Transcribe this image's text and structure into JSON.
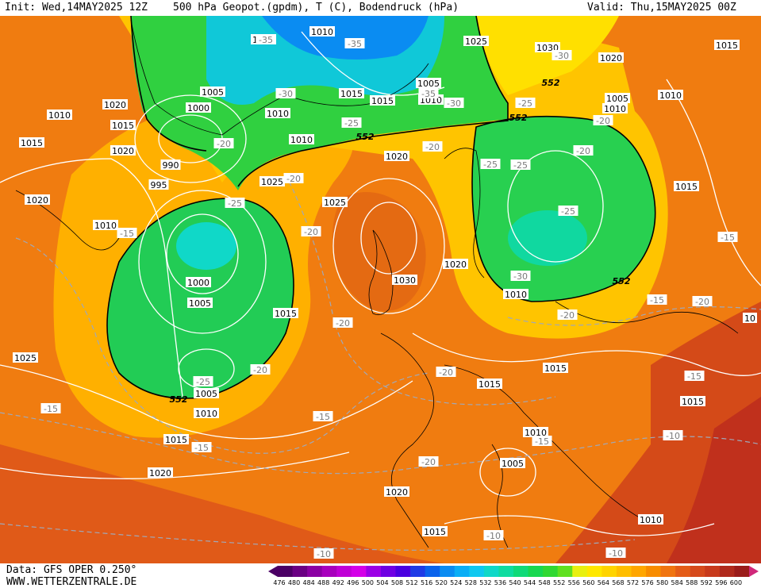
{
  "header": {
    "init": "Init: Wed,14MAY2025 12Z",
    "title": "500 hPa Geopot.(gpdm), T (C), Bodendruck (hPa)",
    "valid": "Valid: Thu,15MAY2025 00Z"
  },
  "footer": {
    "data_source": "Data: GFS OPER 0.250°",
    "site": "WWW.WETTERZENTRALE.DE"
  },
  "colorbar": {
    "ticks": [
      "476",
      "480",
      "484",
      "488",
      "492",
      "496",
      "500",
      "504",
      "508",
      "512",
      "516",
      "520",
      "524",
      "528",
      "532",
      "536",
      "540",
      "544",
      "548",
      "552",
      "556",
      "560",
      "564",
      "568",
      "572",
      "576",
      "580",
      "584",
      "588",
      "592",
      "596",
      "600"
    ],
    "colors": [
      "#4b0065",
      "#6a0083",
      "#8b00a3",
      "#a800bd",
      "#c000d6",
      "#d400e8",
      "#9c00e6",
      "#6f00e3",
      "#4a00e0",
      "#1f3be6",
      "#0a63ec",
      "#0a8cf2",
      "#0aaef6",
      "#10c8f0",
      "#10d8c8",
      "#10dca0",
      "#10da78",
      "#18d850",
      "#30d832",
      "#60e020",
      "#e8f010",
      "#ffe800",
      "#ffd400",
      "#ffbe00",
      "#ffa600",
      "#f88c00",
      "#f07410",
      "#e45c18",
      "#d64a1c",
      "#c83a1c",
      "#b02a1c",
      "#9a1c1a"
    ]
  },
  "pressure_labels": [
    {
      "t": "1010"
    },
    {
      "t": "1035"
    },
    {
      "t": "1025"
    },
    {
      "t": "1015"
    },
    {
      "t": "1030"
    },
    {
      "t": "1020"
    },
    {
      "t": "1005"
    },
    {
      "t": "1010"
    },
    {
      "t": "1005"
    },
    {
      "t": "1010"
    },
    {
      "t": "1015"
    },
    {
      "t": "1015"
    },
    {
      "t": "1005"
    },
    {
      "t": "1000"
    },
    {
      "t": "1010"
    },
    {
      "t": "1020"
    },
    {
      "t": "1010"
    },
    {
      "t": "1015"
    },
    {
      "t": "1010"
    },
    {
      "t": "1010"
    },
    {
      "t": "1015"
    },
    {
      "t": "1020"
    },
    {
      "t": "990"
    },
    {
      "t": "995"
    },
    {
      "t": "1020"
    },
    {
      "t": "1025"
    },
    {
      "t": "1015"
    },
    {
      "t": "1020"
    },
    {
      "t": "1010"
    },
    {
      "t": "1025"
    },
    {
      "t": "1030"
    },
    {
      "t": "1020"
    },
    {
      "t": "1000"
    },
    {
      "t": "1005"
    },
    {
      "t": "1015"
    },
    {
      "t": "1010"
    },
    {
      "t": "1025"
    },
    {
      "t": "1005"
    },
    {
      "t": "1010"
    },
    {
      "t": "1015"
    },
    {
      "t": "1015"
    },
    {
      "t": "1015"
    },
    {
      "t": "1015"
    },
    {
      "t": "1010"
    },
    {
      "t": "1005"
    },
    {
      "t": "1020"
    },
    {
      "t": "1020"
    },
    {
      "t": "1015"
    },
    {
      "t": "1010"
    },
    {
      "t": "10"
    }
  ],
  "temperature_labels": [
    {
      "t": "-35"
    },
    {
      "t": "-35"
    },
    {
      "t": "-35"
    },
    {
      "t": "-30"
    },
    {
      "t": "-30"
    },
    {
      "t": "-30"
    },
    {
      "t": "-25"
    },
    {
      "t": "-20"
    },
    {
      "t": "-25"
    },
    {
      "t": "-20"
    },
    {
      "t": "-20"
    },
    {
      "t": "-20"
    },
    {
      "t": "-25"
    },
    {
      "t": "-15"
    },
    {
      "t": "-15"
    },
    {
      "t": "-25"
    },
    {
      "t": "-20"
    },
    {
      "t": "-30"
    },
    {
      "t": "-20"
    },
    {
      "t": "-20"
    },
    {
      "t": "-25"
    },
    {
      "t": "-20"
    },
    {
      "t": "-15"
    },
    {
      "t": "-15"
    },
    {
      "t": "-15"
    },
    {
      "t": "-20"
    },
    {
      "t": "-15"
    },
    {
      "t": "-20"
    },
    {
      "t": "-20"
    },
    {
      "t": "-25"
    },
    {
      "t": "-20"
    },
    {
      "t": "-15"
    },
    {
      "t": "-10"
    },
    {
      "t": "-10"
    },
    {
      "t": "-10"
    },
    {
      "t": "-10"
    },
    {
      "t": "-15"
    },
    {
      "t": "-25"
    }
  ],
  "geopotential_labels": [
    {
      "t": "552"
    },
    {
      "t": "552"
    },
    {
      "t": "552"
    },
    {
      "t": "552"
    },
    {
      "t": "552"
    }
  ]
}
